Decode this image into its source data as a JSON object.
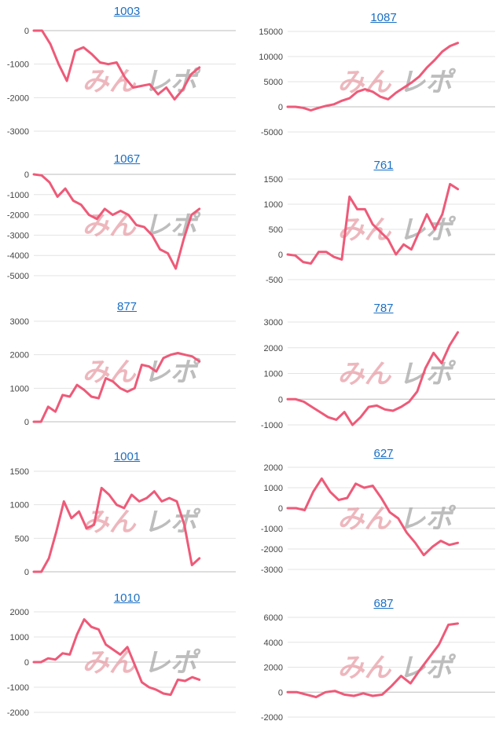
{
  "watermark": {
    "text_a": "みん",
    "text_b": "レポ"
  },
  "chart_data": [
    {
      "type": "line",
      "title": "1003",
      "yticks": [
        0,
        -1000,
        -2000,
        -3000
      ],
      "ylim": [
        -3000,
        0
      ],
      "series": [
        {
          "values": [
            0,
            0,
            -400,
            -1000,
            -1500,
            -600,
            -500,
            -700,
            -950,
            -1000,
            -950,
            -1400,
            -1700,
            -1650,
            -1600,
            -1900,
            -1700,
            -2050,
            -1750,
            -1300,
            -1100
          ]
        }
      ]
    },
    {
      "type": "line",
      "title": "1087",
      "yticks": [
        15000,
        10000,
        5000,
        0,
        -5000
      ],
      "ylim": [
        -5000,
        15000
      ],
      "series": [
        {
          "values": [
            0,
            0,
            -200,
            -700,
            -200,
            200,
            500,
            1200,
            1700,
            3000,
            3500,
            3000,
            2000,
            1500,
            2800,
            3800,
            4800,
            6000,
            7800,
            9300,
            11000,
            12100,
            12700
          ]
        }
      ]
    },
    {
      "type": "line",
      "title": "1067",
      "yticks": [
        0,
        -1000,
        -2000,
        -3000,
        -4000,
        -5000
      ],
      "ylim": [
        -5000,
        0
      ],
      "series": [
        {
          "values": [
            0,
            -50,
            -400,
            -1100,
            -700,
            -1300,
            -1500,
            -2000,
            -2200,
            -1700,
            -2000,
            -1800,
            -2000,
            -2500,
            -2600,
            -3000,
            -3700,
            -3900,
            -4650,
            -3200,
            -2000,
            -1700
          ]
        }
      ]
    },
    {
      "type": "line",
      "title": "761",
      "yticks": [
        1500,
        1000,
        500,
        0,
        -500
      ],
      "ylim": [
        -500,
        1500
      ],
      "series": [
        {
          "values": [
            0,
            -20,
            -150,
            -180,
            50,
            50,
            -50,
            -100,
            1150,
            900,
            900,
            600,
            450,
            300,
            0,
            200,
            100,
            450,
            800,
            500,
            800,
            1400,
            1300
          ]
        }
      ]
    },
    {
      "type": "line",
      "title": "877",
      "yticks": [
        3000,
        2000,
        1000,
        0
      ],
      "ylim": [
        0,
        3000
      ],
      "series": [
        {
          "values": [
            0,
            0,
            450,
            300,
            800,
            750,
            1100,
            950,
            750,
            700,
            1300,
            1200,
            1000,
            900,
            1000,
            1700,
            1650,
            1500,
            1900,
            2000,
            2050,
            2000,
            1950,
            1800
          ]
        }
      ]
    },
    {
      "type": "line",
      "title": "787",
      "yticks": [
        3000,
        2000,
        1000,
        0,
        -1000
      ],
      "ylim": [
        -1000,
        3000
      ],
      "series": [
        {
          "values": [
            0,
            0,
            -100,
            -300,
            -500,
            -700,
            -800,
            -500,
            -1000,
            -700,
            -300,
            -250,
            -400,
            -450,
            -300,
            -100,
            300,
            1200,
            1800,
            1400,
            2100,
            2600
          ]
        }
      ]
    },
    {
      "type": "line",
      "title": "1001",
      "yticks": [
        1500,
        1000,
        500,
        0
      ],
      "ylim": [
        0,
        1500
      ],
      "series": [
        {
          "values": [
            0,
            0,
            200,
            600,
            1050,
            800,
            900,
            650,
            700,
            1250,
            1150,
            1000,
            950,
            1150,
            1050,
            1100,
            1200,
            1050,
            1100,
            1050,
            700,
            100,
            200
          ]
        }
      ]
    },
    {
      "type": "line",
      "title": "627",
      "yticks": [
        2000,
        1000,
        0,
        -1000,
        -2000,
        -3000
      ],
      "ylim": [
        -3000,
        2000
      ],
      "series": [
        {
          "values": [
            0,
            0,
            -100,
            800,
            1450,
            800,
            400,
            500,
            1200,
            1000,
            1100,
            500,
            -200,
            -500,
            -1200,
            -1700,
            -2300,
            -1900,
            -1600,
            -1800,
            -1700
          ]
        }
      ]
    },
    {
      "type": "line",
      "title": "1010",
      "yticks": [
        2000,
        1000,
        0,
        -1000,
        -2000
      ],
      "ylim": [
        -2000,
        2000
      ],
      "series": [
        {
          "values": [
            0,
            0,
            150,
            100,
            350,
            300,
            1100,
            1700,
            1400,
            1300,
            700,
            500,
            300,
            600,
            -100,
            -800,
            -1000,
            -1100,
            -1250,
            -1300,
            -700,
            -750,
            -600,
            -700
          ]
        }
      ]
    },
    {
      "type": "line",
      "title": "687",
      "yticks": [
        6000,
        4000,
        2000,
        0,
        -2000
      ],
      "ylim": [
        -2000,
        6000
      ],
      "series": [
        {
          "values": [
            0,
            0,
            -200,
            -400,
            0,
            100,
            -200,
            -300,
            -100,
            -300,
            -200,
            500,
            1300,
            700,
            1800,
            2800,
            3800,
            5400,
            5500
          ]
        }
      ]
    }
  ]
}
